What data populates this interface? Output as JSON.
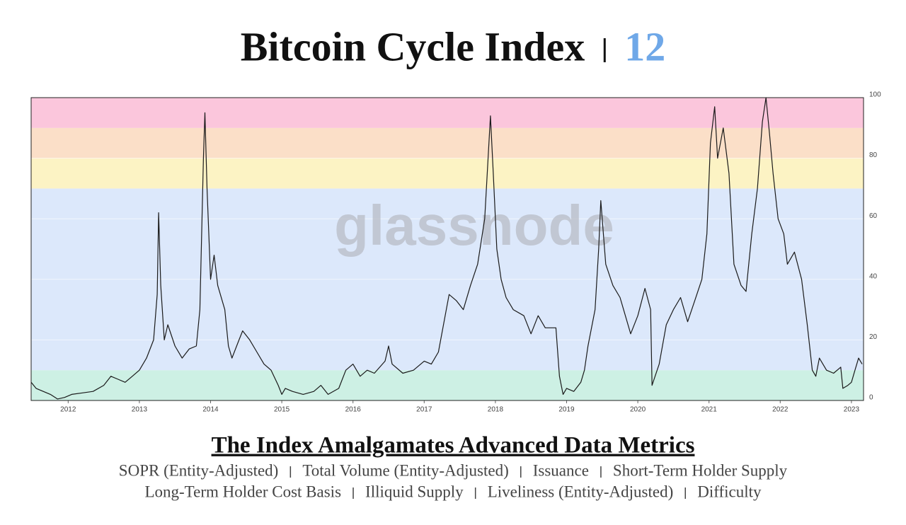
{
  "chart_data": {
    "type": "line",
    "title": "Bitcoin Cycle Index",
    "index_value": 12,
    "index_color": "#6fa8e8",
    "watermark": "glassnode",
    "heading": "The Index Amalgamates Advanced Data Metrics",
    "metrics": [
      "SOPR (Entity-Adjusted)",
      "Total Volume (Entity-Adjusted)",
      "Issuance",
      "Short-Term Holder Supply",
      "Long-Term Holder Cost Basis",
      "Illiquid Supply",
      "Liveliness (Entity-Adjusted)",
      "Difficulty"
    ],
    "zones": [
      {
        "from": 0,
        "to": 10,
        "color": "#cdf0e4"
      },
      {
        "from": 10,
        "to": 70,
        "color": "#dce8fb"
      },
      {
        "from": 70,
        "to": 80,
        "color": "#fcf3c4"
      },
      {
        "from": 80,
        "to": 90,
        "color": "#fbdfc8"
      },
      {
        "from": 90,
        "to": 100,
        "color": "#fbc6dc"
      }
    ],
    "color": "#1a1a1a",
    "x": [
      2011.48,
      2011.55,
      2011.65,
      2011.75,
      2011.85,
      2011.95,
      2012.05,
      2012.2,
      2012.35,
      2012.5,
      2012.6,
      2012.7,
      2012.8,
      2012.9,
      2013.0,
      2013.1,
      2013.2,
      2013.25,
      2013.27,
      2013.3,
      2013.35,
      2013.4,
      2013.5,
      2013.6,
      2013.7,
      2013.8,
      2013.85,
      2013.88,
      2013.9,
      2013.92,
      2013.95,
      2014.0,
      2014.05,
      2014.1,
      2014.2,
      2014.25,
      2014.3,
      2014.4,
      2014.45,
      2014.55,
      2014.65,
      2014.75,
      2014.85,
      2014.95,
      2015.0,
      2015.05,
      2015.15,
      2015.3,
      2015.45,
      2015.55,
      2015.65,
      2015.8,
      2015.9,
      2016.0,
      2016.1,
      2016.2,
      2016.3,
      2016.45,
      2016.5,
      2016.55,
      2016.7,
      2016.85,
      2017.0,
      2017.1,
      2017.2,
      2017.35,
      2017.45,
      2017.55,
      2017.65,
      2017.75,
      2017.85,
      2017.93,
      2017.97,
      2018.02,
      2018.08,
      2018.15,
      2018.25,
      2018.4,
      2018.5,
      2018.6,
      2018.7,
      2018.85,
      2018.9,
      2018.95,
      2019.0,
      2019.1,
      2019.2,
      2019.25,
      2019.3,
      2019.4,
      2019.45,
      2019.48,
      2019.55,
      2019.65,
      2019.75,
      2019.8,
      2019.9,
      2020.0,
      2020.1,
      2020.18,
      2020.2,
      2020.3,
      2020.4,
      2020.5,
      2020.6,
      2020.7,
      2020.8,
      2020.9,
      2020.97,
      2021.02,
      2021.08,
      2021.12,
      2021.2,
      2021.28,
      2021.35,
      2021.45,
      2021.52,
      2021.6,
      2021.68,
      2021.75,
      2021.8,
      2021.85,
      2021.9,
      2021.97,
      2022.05,
      2022.1,
      2022.2,
      2022.3,
      2022.38,
      2022.45,
      2022.5,
      2022.55,
      2022.65,
      2022.75,
      2022.85,
      2022.88,
      2022.95,
      2023.0,
      2023.05,
      2023.1,
      2023.15
    ],
    "values": [
      6,
      4,
      3,
      2,
      0.5,
      1,
      2,
      2.5,
      3,
      5,
      8,
      7,
      6,
      8,
      10,
      14,
      20,
      35,
      62,
      38,
      20,
      25,
      18,
      14,
      17,
      18,
      30,
      60,
      80,
      95,
      70,
      40,
      48,
      38,
      30,
      18,
      14,
      20,
      23,
      20,
      16,
      12,
      10,
      5,
      2,
      4,
      3,
      2,
      3,
      5,
      2,
      4,
      10,
      12,
      8,
      10,
      9,
      13,
      18,
      12,
      9,
      10,
      13,
      12,
      16,
      35,
      33,
      30,
      38,
      45,
      60,
      94,
      75,
      50,
      40,
      34,
      30,
      28,
      22,
      28,
      24,
      24,
      8,
      2,
      4,
      3,
      6,
      10,
      18,
      30,
      50,
      66,
      45,
      38,
      34,
      30,
      22,
      28,
      37,
      30,
      5,
      12,
      25,
      30,
      34,
      26,
      33,
      40,
      55,
      85,
      97,
      80,
      90,
      75,
      45,
      38,
      36,
      55,
      70,
      92,
      100,
      88,
      75,
      60,
      55,
      45,
      49,
      40,
      25,
      10,
      8,
      14,
      10,
      9,
      11,
      4,
      5,
      6,
      10,
      14,
      12
    ],
    "xlim": [
      2011.48,
      2023.17
    ],
    "xticks": [
      2012,
      2013,
      2014,
      2015,
      2016,
      2017,
      2018,
      2019,
      2020,
      2021,
      2022,
      2023
    ],
    "ylim": [
      0,
      100
    ],
    "yticks": [
      0,
      20,
      40,
      60,
      80,
      100
    ],
    "grid": true
  }
}
